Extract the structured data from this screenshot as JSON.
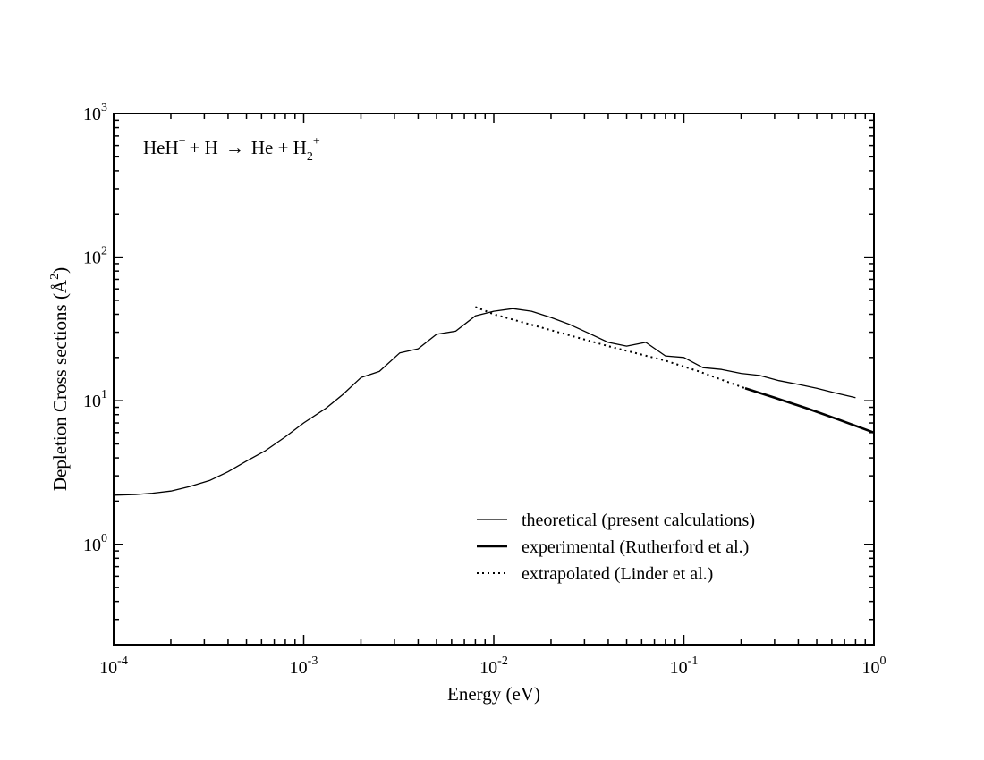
{
  "chart_data": {
    "type": "line",
    "title": "",
    "xlabel": "Energy (eV)",
    "ylabel": {
      "text": "Depletion Cross sections (",
      "unit": "Å",
      "unit_exp": "2",
      "close": ")"
    },
    "xscale": "log",
    "yscale": "log",
    "xlim": [
      0.0001,
      1
    ],
    "ylim": [
      0.2,
      1000
    ],
    "grid": false,
    "legend_position": "lower-right",
    "x_ticks": [
      {
        "base": "10",
        "exp": "-4",
        "value": 0.0001
      },
      {
        "base": "10",
        "exp": "-3",
        "value": 0.001
      },
      {
        "base": "10",
        "exp": "-2",
        "value": 0.01
      },
      {
        "base": "10",
        "exp": "-1",
        "value": 0.1
      },
      {
        "base": "10",
        "exp": "0",
        "value": 1
      }
    ],
    "y_ticks": [
      {
        "base": "10",
        "exp": "0",
        "value": 1
      },
      {
        "base": "10",
        "exp": "1",
        "value": 10
      },
      {
        "base": "10",
        "exp": "2",
        "value": 100
      },
      {
        "base": "10",
        "exp": "3",
        "value": 1000
      }
    ],
    "annotation": {
      "reactant1": "HeH",
      "reactant1_sup": "+",
      "plus1": "+ H",
      "arrow": "→",
      "product1": "He + H",
      "product2_sub": "2",
      "product2_sup": "+"
    },
    "series": [
      {
        "name": "theoretical (present calculations)",
        "style": "thin",
        "x": [
          0.0001,
          0.00013,
          0.00016,
          0.0002,
          0.00025,
          0.00032,
          0.0004,
          0.0005,
          0.00063,
          0.0008,
          0.001,
          0.0013,
          0.0016,
          0.002,
          0.0025,
          0.0032,
          0.004,
          0.005,
          0.0063,
          0.008,
          0.01,
          0.0126,
          0.0158,
          0.02,
          0.025,
          0.0316,
          0.04,
          0.05,
          0.063,
          0.08,
          0.1,
          0.126,
          0.158,
          0.2,
          0.25,
          0.316,
          0.4,
          0.5,
          0.63,
          0.8
        ],
        "y": [
          2.2,
          2.22,
          2.27,
          2.35,
          2.52,
          2.78,
          3.2,
          3.8,
          4.5,
          5.6,
          7.0,
          8.8,
          11.0,
          14.5,
          16.0,
          21.5,
          23.0,
          29.0,
          30.5,
          39.0,
          42.0,
          43.8,
          42.0,
          38.0,
          34.0,
          29.5,
          25.5,
          24.0,
          25.5,
          20.5,
          20.0,
          17.0,
          16.5,
          15.5,
          15.0,
          13.8,
          13.0,
          12.2,
          11.3,
          10.5
        ]
      },
      {
        "name": "experimental (Rutherford et al.)",
        "style": "thick",
        "x": [
          0.21,
          0.3,
          0.45,
          0.65,
          1.0
        ],
        "y": [
          12.2,
          10.5,
          8.8,
          7.4,
          6.0
        ]
      },
      {
        "name": "extrapolated (Linder et al.)",
        "style": "dotted",
        "x": [
          0.008,
          0.01,
          0.02,
          0.04,
          0.08,
          0.12,
          0.21
        ],
        "y": [
          45.0,
          40.0,
          31.0,
          24.0,
          19.0,
          16.0,
          12.2
        ]
      }
    ]
  }
}
